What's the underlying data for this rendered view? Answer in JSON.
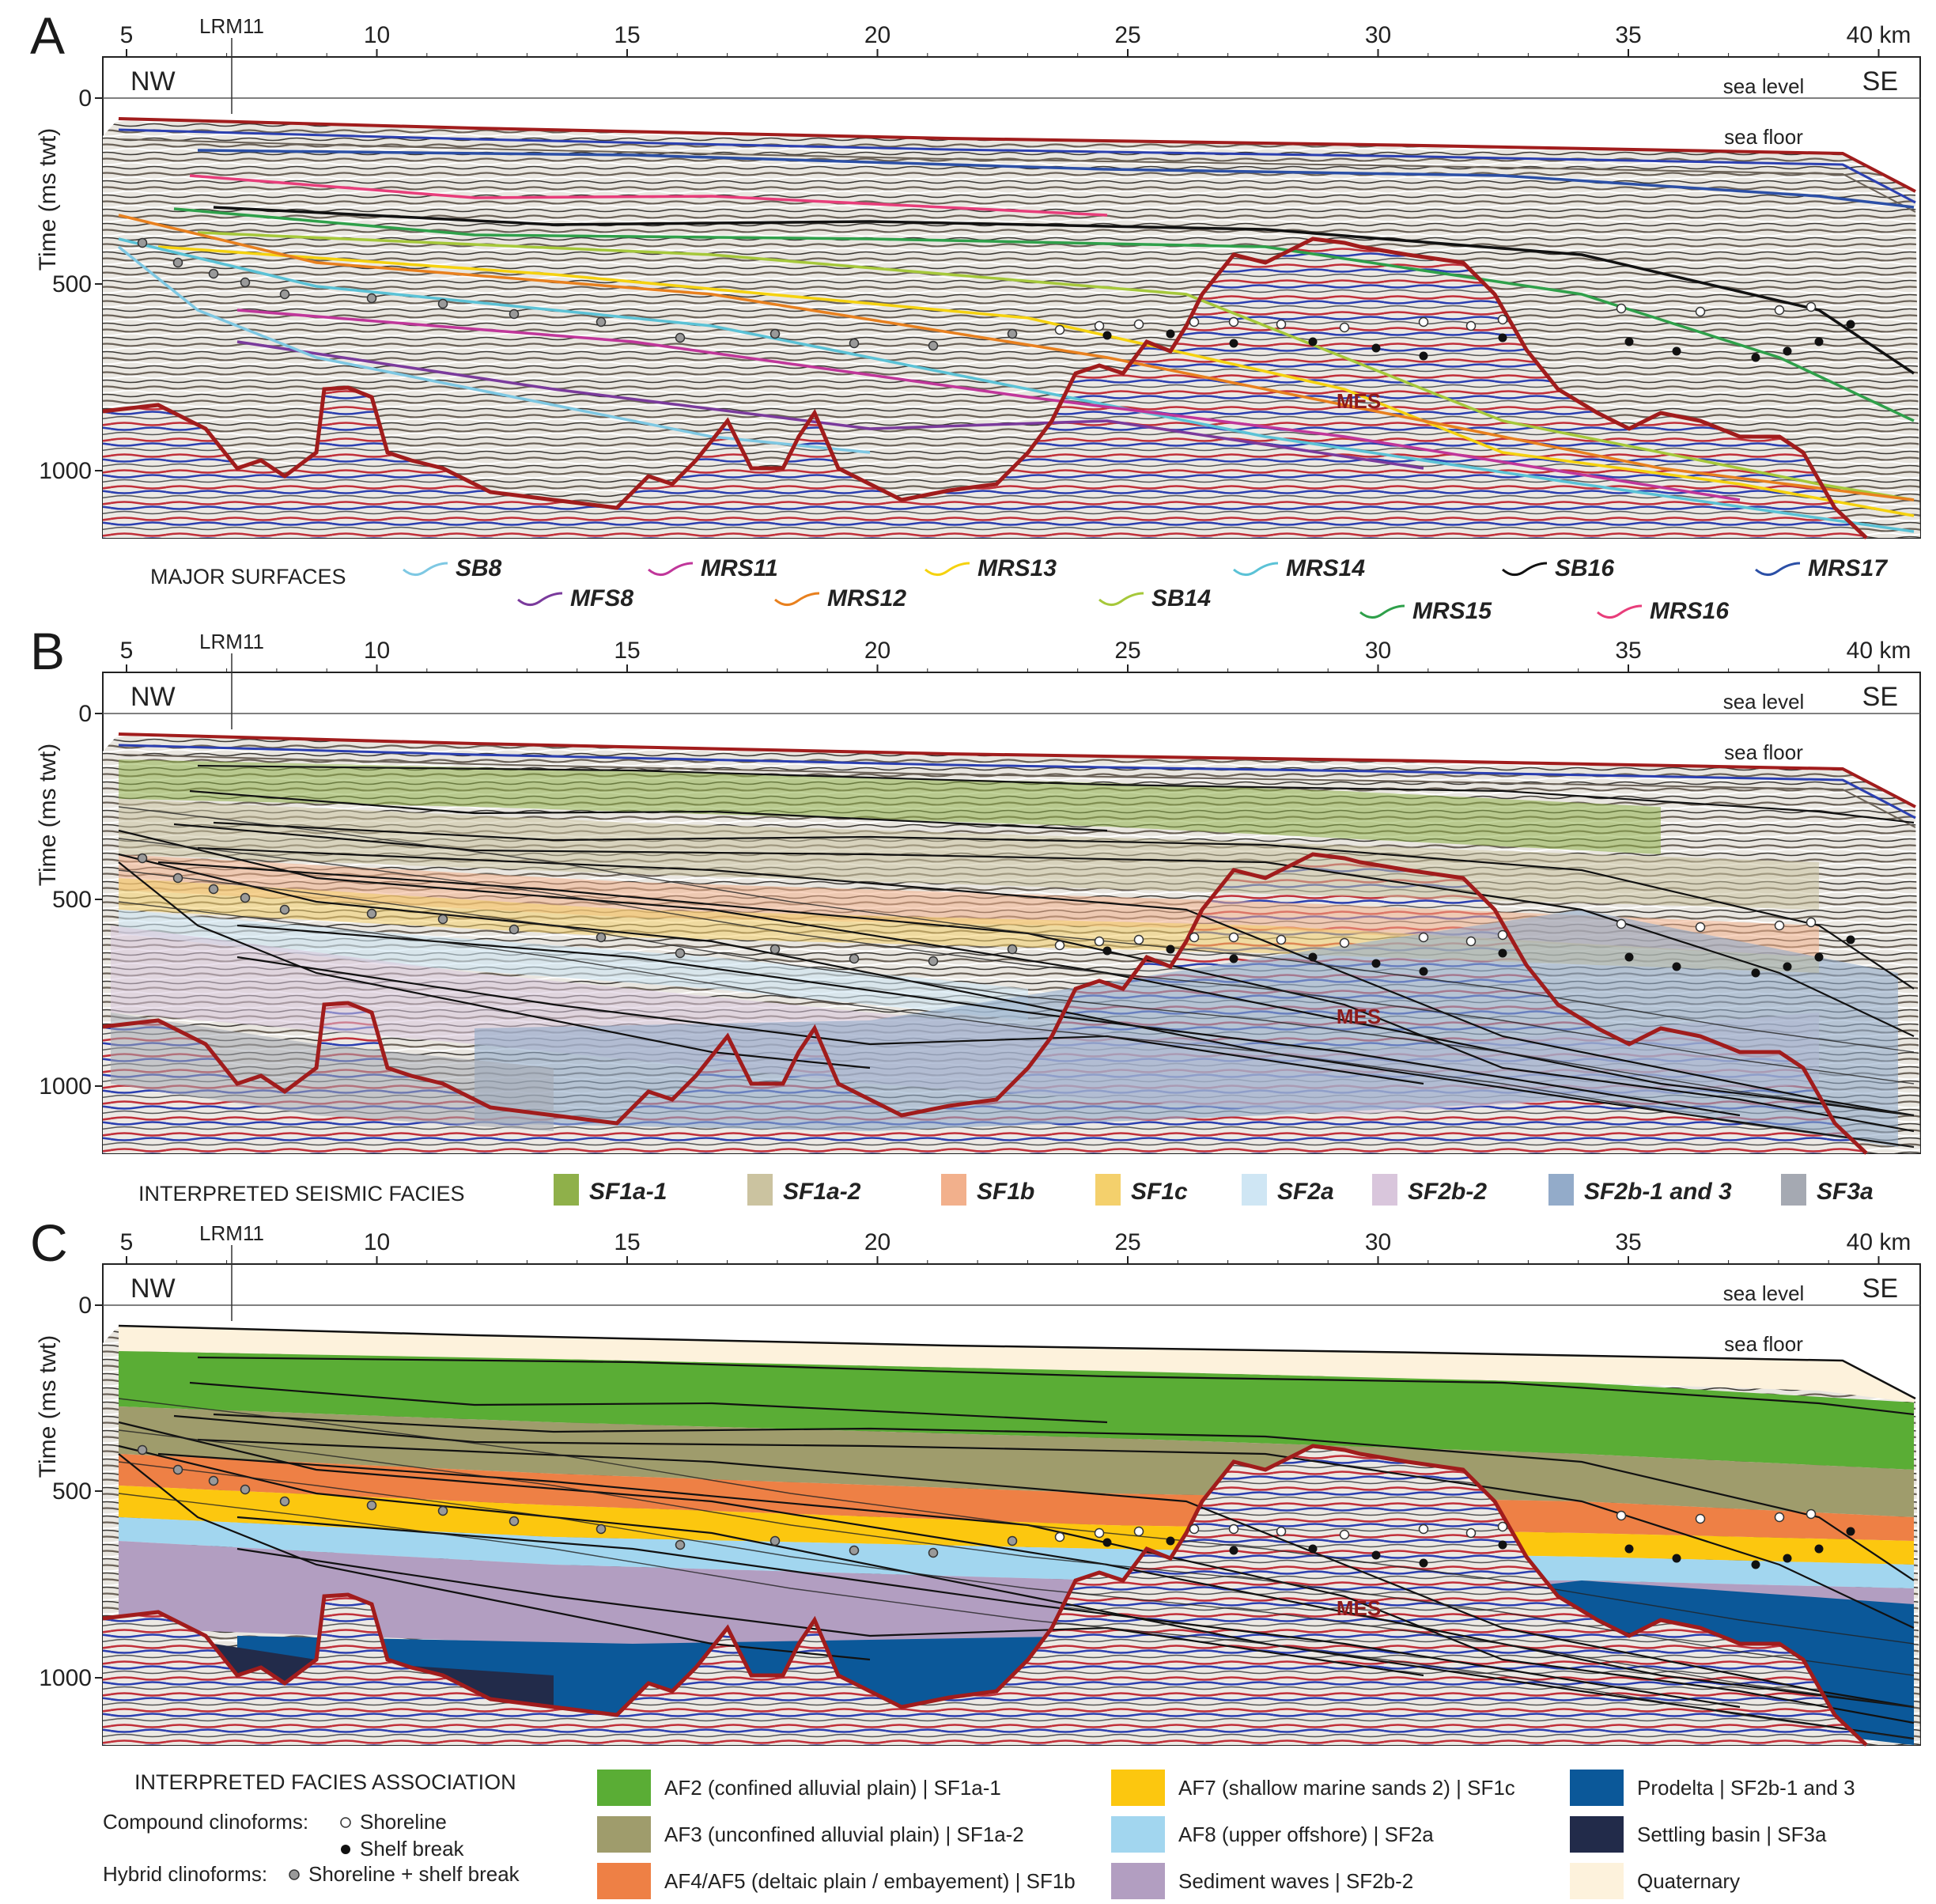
{
  "panels": [
    {
      "letter": "A",
      "nw": "NW",
      "se": "SE",
      "lrm": "LRM11",
      "sea_level": "sea level",
      "sea_floor": "sea floor",
      "mes": "MES",
      "ylabel": "Time (ms twt)"
    },
    {
      "letter": "B",
      "nw": "NW",
      "se": "SE",
      "lrm": "LRM11",
      "sea_level": "sea level",
      "sea_floor": "sea floor",
      "mes": "MES",
      "ylabel": "Time (ms twt)"
    },
    {
      "letter": "C",
      "nw": "NW",
      "se": "SE",
      "lrm": "LRM11",
      "sea_level": "sea level",
      "sea_floor": "sea floor",
      "mes": "MES",
      "ylabel": "Time (ms twt)"
    }
  ],
  "x_axis": {
    "ticks": [
      "5",
      "10",
      "15",
      "20",
      "25",
      "30",
      "35",
      "40 km"
    ],
    "values": [
      5,
      10,
      15,
      20,
      25,
      30,
      35,
      40
    ]
  },
  "y_axis": {
    "ticks": [
      "0",
      "500",
      "1000"
    ],
    "values": [
      0,
      500,
      1000
    ]
  },
  "legend_surfaces": {
    "title": "MAJOR SURFACES",
    "items": [
      {
        "name": "SB8",
        "color": "#7ec8e3"
      },
      {
        "name": "MRS11",
        "color": "#c0369a"
      },
      {
        "name": "MRS13",
        "color": "#f5d20f"
      },
      {
        "name": "MRS14",
        "color": "#5bc2d6"
      },
      {
        "name": "SB16",
        "color": "#111111"
      },
      {
        "name": "MRS17",
        "color": "#2b4fa6"
      },
      {
        "name": "MFS8",
        "color": "#7a3a9c"
      },
      {
        "name": "MRS12",
        "color": "#e8801e"
      },
      {
        "name": "SB14",
        "color": "#a6c83a"
      },
      {
        "name": "MRS15",
        "color": "#2ea04a"
      },
      {
        "name": "MRS16",
        "color": "#e83d7a"
      }
    ]
  },
  "legend_facies": {
    "title": "INTERPRETED SEISMIC FACIES",
    "items": [
      {
        "name": "SF1a-1",
        "color": "#8fb04a"
      },
      {
        "name": "SF1a-2",
        "color": "#cbc3a0"
      },
      {
        "name": "SF1b",
        "color": "#f2b08c"
      },
      {
        "name": "SF1c",
        "color": "#f4d06c"
      },
      {
        "name": "SF2a",
        "color": "#cfe6f4"
      },
      {
        "name": "SF2b-2",
        "color": "#d9c6dc"
      },
      {
        "name": "SF2b-1 and 3",
        "color": "#93abc9"
      },
      {
        "name": "SF3a",
        "color": "#a5a9b2"
      }
    ]
  },
  "legend_assoc": {
    "title": "INTERPRETED FACIES ASSOCIATION",
    "compound": "Compound clinoforms:",
    "shoreline": "Shoreline",
    "shelf_break": "Shelf break",
    "hybrid": "Hybrid clinoforms:",
    "shoreline_shelf": "Shoreline + shelf break",
    "items": [
      {
        "name": "AF2 (confined alluvial plain) | SF1a-1",
        "color": "#5aad35"
      },
      {
        "name": "AF3 (unconfined alluvial plain) | SF1a-2",
        "color": "#9f9c6c"
      },
      {
        "name": "AF4/AF5 (deltaic plain / embayement) | SF1b",
        "color": "#ee8045"
      },
      {
        "name": "AF7 (shallow marine sands 2) | SF1c",
        "color": "#fcc70f"
      },
      {
        "name": "AF8 (upper offshore) | SF2a",
        "color": "#a2d6ef"
      },
      {
        "name": "Sediment waves | SF2b-2",
        "color": "#b29ec1"
      },
      {
        "name": "Prodelta | SF2b-1 and 3",
        "color": "#0b5899"
      },
      {
        "name": "Settling basin | SF3a",
        "color": "#222b4a"
      },
      {
        "name": "Quaternary",
        "color": "#fdf2dc"
      }
    ]
  },
  "colors": {
    "mes": "#a11c1c",
    "seafloor": "#a11c1c",
    "blue_reflector": "#2b3fb0"
  }
}
